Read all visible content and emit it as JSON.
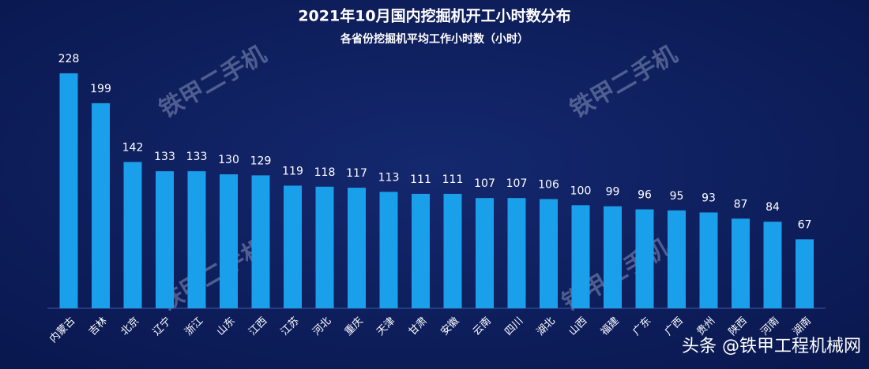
{
  "chart_data": {
    "type": "bar",
    "title": "2021年10月国内挖掘机开工小时数分布",
    "subtitle": "各省份挖掘机平均工作小时数（小时）",
    "categories": [
      "内蒙古",
      "吉林",
      "北京",
      "辽宁",
      "浙江",
      "山东",
      "江西",
      "江苏",
      "河北",
      "重庆",
      "天津",
      "甘肃",
      "安徽",
      "云南",
      "四川",
      "湖北",
      "山西",
      "福建",
      "广东",
      "广西",
      "贵州",
      "陕西",
      "河南",
      "湖南"
    ],
    "values": [
      228,
      199,
      142,
      133,
      133,
      130,
      129,
      119,
      118,
      117,
      113,
      111,
      111,
      107,
      107,
      106,
      100,
      99,
      96,
      95,
      93,
      87,
      84,
      67
    ],
    "color": "#1a9fea",
    "ylim": [
      0,
      228
    ],
    "watermark": "铁甲二手机",
    "footer": "头条 @铁甲工程机械网"
  }
}
